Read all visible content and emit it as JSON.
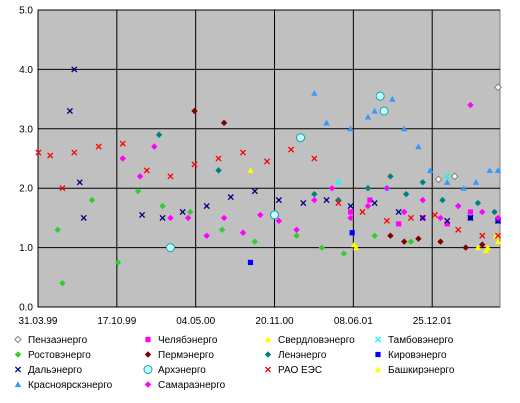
{
  "chart_data": {
    "type": "scatter",
    "title": "",
    "xlabel": "",
    "ylabel": "",
    "ylim": [
      0,
      5
    ],
    "y_ticks": [
      "0.0",
      "1.0",
      "2.0",
      "3.0",
      "4.0",
      "5.0"
    ],
    "x_ticks": [
      "31.03.99",
      "17.10.99",
      "04.05.00",
      "20.11.00",
      "08.06.01",
      "25.12.01"
    ],
    "xlim": [
      "1999-03-31",
      "2002-06-15"
    ],
    "grid": true,
    "plot_background": "#c0c0c0",
    "legend_position": "bottom",
    "series": [
      {
        "name": "Пензаэнерго",
        "color": "#808080",
        "marker": "diamond-open",
        "points": [
          [
            "2002-01-10",
            2.15
          ],
          [
            "2002-02-20",
            2.2
          ],
          [
            "2002-06-10",
            3.7
          ]
        ]
      },
      {
        "name": "Челябэнерго",
        "color": "#ff00ff",
        "marker": "square",
        "points": [
          [
            "2001-06-01",
            1.6
          ],
          [
            "2001-07-20",
            1.8
          ],
          [
            "2001-10-01",
            1.4
          ],
          [
            "2001-12-01",
            1.5
          ],
          [
            "2002-02-01",
            1.4
          ],
          [
            "2002-04-01",
            1.6
          ]
        ]
      },
      {
        "name": "Свердловэнерго",
        "color": "#ffff00",
        "marker": "triangle",
        "points": [
          [
            "2000-09-20",
            2.3
          ],
          [
            "2001-06-15",
            1.0
          ],
          [
            "2002-04-20",
            1.0
          ],
          [
            "2002-05-10",
            0.95
          ],
          [
            "2002-06-05",
            1.2
          ]
        ]
      },
      {
        "name": "Тамбовэнерго",
        "color": "#00ffff",
        "marker": "x",
        "points": [
          [
            "2001-05-01",
            2.1
          ],
          [
            "2001-09-01",
            2.0
          ],
          [
            "2002-02-01",
            2.2
          ]
        ]
      },
      {
        "name": "Ростовэнерго",
        "color": "#33cc33",
        "marker": "diamond",
        "points": [
          [
            "1999-05-20",
            1.3
          ],
          [
            "1999-06-01",
            0.4
          ],
          [
            "1999-08-15",
            1.8
          ],
          [
            "1999-10-20",
            0.75
          ],
          [
            "1999-12-10",
            1.95
          ],
          [
            "2000-02-10",
            1.7
          ],
          [
            "2000-04-20",
            1.6
          ],
          [
            "2000-07-10",
            1.3
          ],
          [
            "2000-10-01",
            1.1
          ],
          [
            "2001-01-15",
            1.2
          ],
          [
            "2001-03-20",
            1.0
          ],
          [
            "2001-05-15",
            0.9
          ],
          [
            "2001-08-01",
            1.2
          ],
          [
            "2001-11-01",
            1.1
          ]
        ]
      },
      {
        "name": "Пермэнерго",
        "color": "#800000",
        "marker": "diamond",
        "points": [
          [
            "2000-05-01",
            3.3
          ],
          [
            "2000-07-15",
            3.1
          ],
          [
            "2001-09-10",
            1.2
          ],
          [
            "2001-10-15",
            1.1
          ],
          [
            "2001-11-20",
            1.15
          ],
          [
            "2002-01-15",
            1.1
          ],
          [
            "2002-03-20",
            1.0
          ],
          [
            "2002-05-01",
            1.05
          ]
        ]
      },
      {
        "name": "Ленэнерго",
        "color": "#008080",
        "marker": "diamond",
        "points": [
          [
            "2000-02-01",
            2.9
          ],
          [
            "2000-07-01",
            2.3
          ],
          [
            "2001-03-01",
            1.9
          ],
          [
            "2001-05-01",
            1.8
          ],
          [
            "2001-07-15",
            2.0
          ],
          [
            "2001-09-10",
            2.2
          ],
          [
            "2001-10-20",
            1.9
          ],
          [
            "2001-12-01",
            2.1
          ],
          [
            "2002-01-20",
            1.8
          ],
          [
            "2002-03-01",
            1.7
          ],
          [
            "2002-04-20",
            1.75
          ],
          [
            "2002-06-01",
            1.6
          ]
        ]
      },
      {
        "name": "Кировэнерго",
        "color": "#0000ff",
        "marker": "square",
        "points": [
          [
            "2000-09-20",
            0.75
          ],
          [
            "2001-06-05",
            1.25
          ],
          [
            "2002-04-01",
            1.5
          ],
          [
            "2002-06-10",
            1.45
          ]
        ]
      },
      {
        "name": "Дальэнерго",
        "color": "#000080",
        "marker": "x",
        "points": [
          [
            "1999-07-01",
            4.0
          ],
          [
            "1999-07-15",
            2.1
          ],
          [
            "1999-06-20",
            3.3
          ],
          [
            "1999-07-25",
            1.5
          ],
          [
            "1999-12-20",
            1.55
          ],
          [
            "2000-02-10",
            1.5
          ],
          [
            "2000-04-01",
            1.6
          ],
          [
            "2000-06-01",
            1.7
          ],
          [
            "2000-08-01",
            1.85
          ],
          [
            "2000-10-01",
            1.95
          ],
          [
            "2000-12-01",
            1.8
          ],
          [
            "2001-02-01",
            1.75
          ],
          [
            "2001-04-01",
            1.8
          ],
          [
            "2001-06-01",
            1.7
          ],
          [
            "2001-08-01",
            1.75
          ],
          [
            "2001-10-01",
            1.6
          ],
          [
            "2001-12-01",
            1.5
          ],
          [
            "2002-02-01",
            1.45
          ],
          [
            "2002-04-01",
            1.5
          ],
          [
            "2002-06-10",
            1.45
          ]
        ]
      },
      {
        "name": "Архэнерго",
        "color": "#00ffff",
        "marker": "circle-open",
        "points": [
          [
            "2000-03-01",
            1.0
          ],
          [
            "2000-11-20",
            1.55
          ],
          [
            "2001-01-25",
            2.85
          ],
          [
            "2001-08-15",
            3.55
          ],
          [
            "2001-08-25",
            3.3
          ]
        ]
      },
      {
        "name": "РАО ЕЭС",
        "color": "#ff0000",
        "marker": "x",
        "points": [
          [
            "1999-04-01",
            2.6
          ],
          [
            "1999-05-01",
            2.55
          ],
          [
            "1999-06-01",
            2.0
          ],
          [
            "1999-07-01",
            2.6
          ],
          [
            "1999-09-01",
            2.7
          ],
          [
            "1999-11-01",
            2.75
          ],
          [
            "2000-01-01",
            2.3
          ],
          [
            "2000-03-01",
            2.2
          ],
          [
            "2000-05-01",
            2.4
          ],
          [
            "2000-07-01",
            2.5
          ],
          [
            "2000-09-01",
            2.6
          ],
          [
            "2000-11-01",
            2.45
          ],
          [
            "2001-01-01",
            2.65
          ],
          [
            "2001-03-01",
            2.5
          ],
          [
            "2001-05-01",
            1.75
          ],
          [
            "2001-07-01",
            1.6
          ],
          [
            "2001-09-01",
            1.45
          ],
          [
            "2001-11-01",
            1.5
          ],
          [
            "2002-01-01",
            1.55
          ],
          [
            "2002-03-01",
            1.3
          ],
          [
            "2002-05-01",
            1.2
          ],
          [
            "2002-06-10",
            1.2
          ]
        ]
      },
      {
        "name": "Башкирэнерго",
        "color": "#ffff00",
        "marker": "triangle",
        "points": [
          [
            "2001-06-10",
            1.05
          ],
          [
            "2002-05-15",
            1.0
          ],
          [
            "2002-06-10",
            1.1
          ]
        ]
      },
      {
        "name": "Красноярскэнерго",
        "color": "#3399ff",
        "marker": "triangle",
        "points": [
          [
            "2001-03-01",
            3.6
          ],
          [
            "2001-04-01",
            3.1
          ],
          [
            "2001-06-01",
            3.0
          ],
          [
            "2001-07-15",
            3.2
          ],
          [
            "2001-08-01",
            3.3
          ],
          [
            "2001-09-15",
            3.5
          ],
          [
            "2001-10-15",
            3.0
          ],
          [
            "2001-11-20",
            2.7
          ],
          [
            "2001-12-20",
            2.3
          ],
          [
            "2002-02-01",
            2.1
          ],
          [
            "2002-03-15",
            2.0
          ],
          [
            "2002-04-15",
            2.1
          ],
          [
            "2002-05-20",
            2.3
          ],
          [
            "2002-06-10",
            2.3
          ]
        ]
      },
      {
        "name": "Самараэнерго",
        "color": "#ff00ff",
        "marker": "diamond",
        "points": [
          [
            "1999-11-01",
            2.5
          ],
          [
            "1999-12-15",
            2.2
          ],
          [
            "2000-01-20",
            2.7
          ],
          [
            "2000-03-01",
            1.5
          ],
          [
            "2000-04-15",
            1.5
          ],
          [
            "2000-06-01",
            1.2
          ],
          [
            "2000-07-15",
            1.5
          ],
          [
            "2000-09-01",
            1.25
          ],
          [
            "2000-10-15",
            1.55
          ],
          [
            "2000-12-01",
            1.45
          ],
          [
            "2001-01-15",
            1.3
          ],
          [
            "2001-03-01",
            1.8
          ],
          [
            "2001-04-15",
            2.0
          ],
          [
            "2001-06-01",
            1.5
          ],
          [
            "2001-07-15",
            1.7
          ],
          [
            "2001-09-01",
            2.0
          ],
          [
            "2001-10-15",
            1.6
          ],
          [
            "2001-12-01",
            1.8
          ],
          [
            "2002-01-15",
            1.5
          ],
          [
            "2002-03-01",
            1.7
          ],
          [
            "2002-04-01",
            3.4
          ],
          [
            "2002-05-01",
            1.6
          ],
          [
            "2002-06-10",
            1.5
          ]
        ]
      }
    ]
  }
}
